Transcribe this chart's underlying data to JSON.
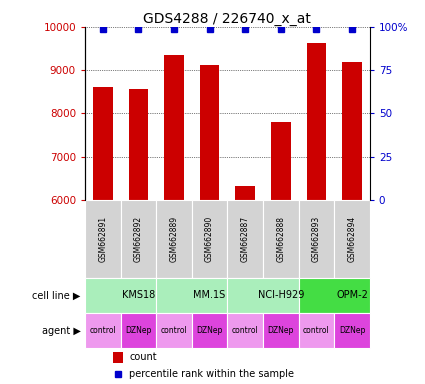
{
  "title": "GDS4288 / 226740_x_at",
  "samples": [
    "GSM662891",
    "GSM662892",
    "GSM662889",
    "GSM662890",
    "GSM662887",
    "GSM662888",
    "GSM662893",
    "GSM662894"
  ],
  "counts": [
    8620,
    8560,
    9340,
    9120,
    6330,
    7800,
    9620,
    9200
  ],
  "percentile_ranks": [
    99,
    99,
    99,
    99,
    99,
    99,
    99,
    99
  ],
  "cell_lines": [
    {
      "label": "KMS18",
      "start": 0,
      "end": 2,
      "color": "#aaeebb"
    },
    {
      "label": "MM.1S",
      "start": 2,
      "end": 4,
      "color": "#aaeebb"
    },
    {
      "label": "NCI-H929",
      "start": 4,
      "end": 6,
      "color": "#aaeebb"
    },
    {
      "label": "OPM-2",
      "start": 6,
      "end": 8,
      "color": "#44dd44"
    }
  ],
  "agents": [
    "control",
    "DZNep",
    "control",
    "DZNep",
    "control",
    "DZNep",
    "control",
    "DZNep"
  ],
  "control_color": "#ee99ee",
  "dznep_color": "#dd44dd",
  "bar_color": "#cc0000",
  "dot_color": "#0000cc",
  "ylim_left": [
    6000,
    10000
  ],
  "ylim_right": [
    0,
    100
  ],
  "yticks_left": [
    6000,
    7000,
    8000,
    9000,
    10000
  ],
  "yticks_right": [
    0,
    25,
    50,
    75,
    100
  ],
  "sample_bg_color": "#d3d3d3",
  "title_fontsize": 10,
  "tick_fontsize": 7.5,
  "bar_width": 0.55,
  "cell_line_row_label": "cell line",
  "agent_row_label": "agent",
  "legend_count_label": "count",
  "legend_percentile_label": "percentile rank within the sample"
}
